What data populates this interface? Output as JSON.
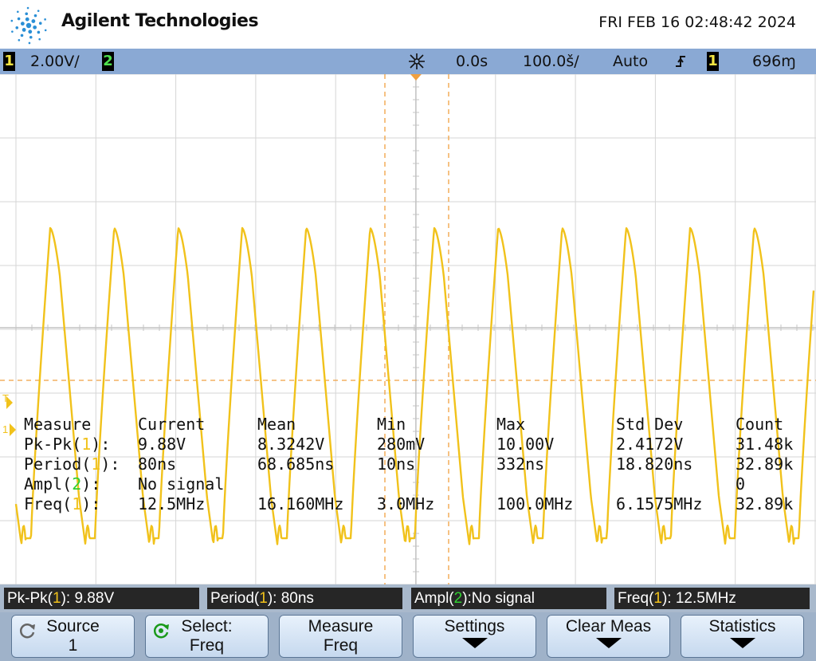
{
  "header": {
    "brand": "Agilent Technologies",
    "datetime": "FRI FEB 16 02:48:42 2024"
  },
  "statusbar": {
    "ch1_label": "1",
    "ch1_scale": "2.00V/",
    "ch2_label": "2",
    "time_delay": "0.0s",
    "time_scale": "100.0š/",
    "trigger_mode": "Auto",
    "trigger_slope_icon": "rising-edge-icon",
    "trigger_source": "1",
    "trigger_level": "696ɱ"
  },
  "colors": {
    "ch1": "#f1c21b",
    "ch2": "#30d030",
    "cursor": "#f0a040",
    "statusbar_bg": "#8aa9d4"
  },
  "markers": {
    "trigger_marker": "T",
    "ground_marker": "1"
  },
  "measurements": {
    "headers": [
      "Measure",
      "Current",
      "Mean",
      "Min",
      "Max",
      "Std Dev",
      "Count"
    ],
    "rows": [
      {
        "name": "Pk-Pk(",
        "ch": "1",
        "suffix": "):",
        "ch_color": "ch1",
        "current": "9.88V",
        "mean": "8.3242V",
        "min": "280mV",
        "max": "10.00V",
        "std": "2.4172V",
        "count": "31.48k"
      },
      {
        "name": "Period(",
        "ch": "1",
        "suffix": "):",
        "ch_color": "ch1",
        "current": "80ns",
        "mean": "68.685ns",
        "min": "10ns",
        "max": "332ns",
        "std": "18.820ns",
        "count": "32.89k"
      },
      {
        "name": "Ampl(",
        "ch": "2",
        "suffix": "):",
        "ch_color": "ch2",
        "current": "No signal",
        "mean": "",
        "min": "",
        "max": "",
        "std": "",
        "count": "0"
      },
      {
        "name": "Freq(",
        "ch": "1",
        "suffix": "):",
        "ch_color": "ch1",
        "current": "12.5MHz",
        "mean": "16.160MHz",
        "min": "3.0MHz",
        "max": "100.0MHz",
        "std": "6.1575MHz",
        "count": "32.89k"
      }
    ]
  },
  "summary": [
    {
      "pre": "Pk-Pk(",
      "ch": "1",
      "post": "): 9.88V",
      "ch_color": "ch1"
    },
    {
      "pre": "Period(",
      "ch": "1",
      "post": "): 80ns",
      "ch_color": "ch1"
    },
    {
      "pre": "Ampl(",
      "ch": "2",
      "post": "):No signal",
      "ch_color": "ch2"
    },
    {
      "pre": "Freq(",
      "ch": "1",
      "post": "): 12.5MHz",
      "ch_color": "ch1"
    }
  ],
  "softkeys": [
    {
      "line1": "Source",
      "line2": "1",
      "icon": "rotate-knob-icon"
    },
    {
      "line1": "Select:",
      "line2": "Freq",
      "icon": "select-knob-icon"
    },
    {
      "line1": "Measure",
      "line2": "Freq",
      "icon": ""
    },
    {
      "line1": "Settings",
      "line2": "",
      "icon": "down-arrow-icon"
    },
    {
      "line1": "Clear Meas",
      "line2": "",
      "icon": "down-arrow-icon"
    },
    {
      "line1": "Statistics",
      "line2": "",
      "icon": "down-arrow-icon"
    }
  ]
}
